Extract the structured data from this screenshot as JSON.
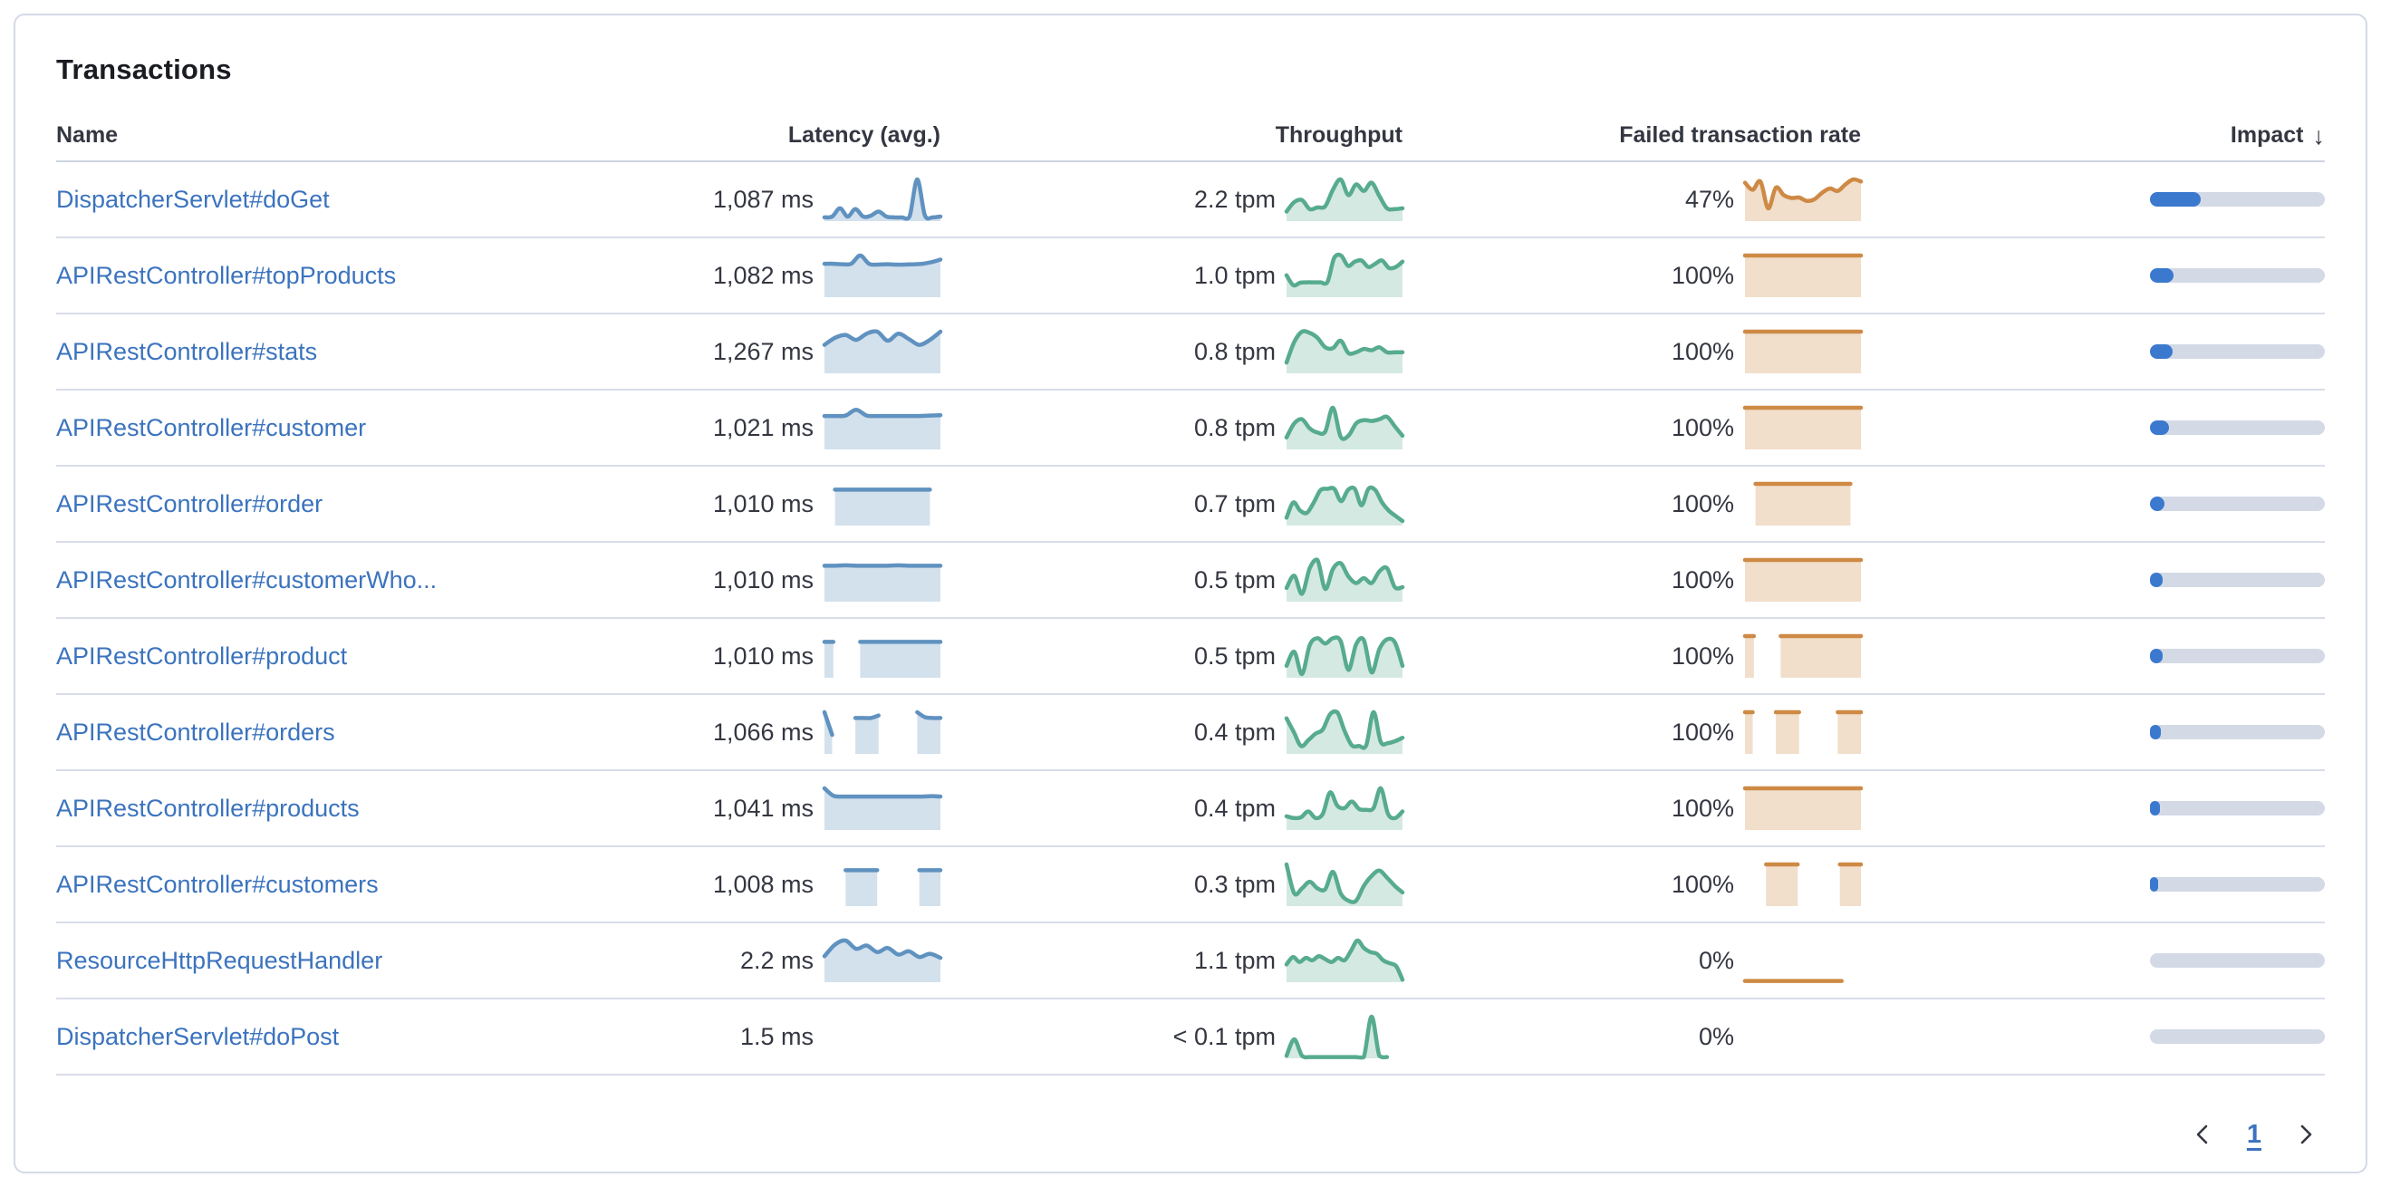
{
  "panel": {
    "title": "Transactions"
  },
  "table": {
    "columns": [
      {
        "label": "Name"
      },
      {
        "label": "Latency (avg.)"
      },
      {
        "label": "Throughput"
      },
      {
        "label": "Failed transaction rate"
      },
      {
        "label": "Impact",
        "sort": "desc"
      }
    ],
    "sort_icon": "↓",
    "rows": [
      {
        "name": "DispatcherServlet#doGet",
        "latency": "1,087 ms",
        "throughput": "2.2 tpm",
        "failed_rate": "47%",
        "impact_pct": 29,
        "latency_spark": [
          0.08,
          0.1,
          0.3,
          0.1,
          0.28,
          0.1,
          0.12,
          0.22,
          0.1,
          0.08,
          0.08,
          0.1,
          1.0,
          0.12,
          0.08,
          0.1
        ],
        "throughput_spark": [
          0.22,
          0.45,
          0.5,
          0.28,
          0.32,
          0.35,
          0.75,
          1.0,
          0.62,
          0.88,
          0.72,
          0.92,
          0.6,
          0.3,
          0.28,
          0.3
        ],
        "failed_spark": [
          0.92,
          0.75,
          0.95,
          0.3,
          0.8,
          0.62,
          0.55,
          0.56,
          0.48,
          0.52,
          0.68,
          0.78,
          0.72,
          0.88,
          1.0,
          0.95
        ]
      },
      {
        "name": "APIRestController#topProducts",
        "latency": "1,082 ms",
        "throughput": "1.0 tpm",
        "failed_rate": "100%",
        "impact_pct": 13.5,
        "latency_spark": [
          0.8,
          0.8,
          0.79,
          0.8,
          1.0,
          0.8,
          0.78,
          0.79,
          0.78,
          0.78,
          0.79,
          0.8,
          0.84,
          0.9
        ],
        "throughput_spark": [
          0.52,
          0.28,
          0.34,
          0.35,
          0.35,
          0.35,
          0.36,
          0.95,
          1.0,
          0.75,
          0.85,
          0.88,
          0.72,
          0.8,
          0.88,
          0.7,
          0.72,
          0.85
        ],
        "failed_spark": [
          1,
          1,
          1,
          1,
          1,
          1,
          1,
          1,
          1,
          1,
          1,
          1
        ]
      },
      {
        "name": "APIRestController#stats",
        "latency": "1,267 ms",
        "throughput": "0.8 tpm",
        "failed_rate": "100%",
        "impact_pct": 13,
        "latency_spark": [
          0.68,
          0.85,
          0.92,
          0.8,
          0.95,
          1.0,
          0.78,
          0.95,
          0.82,
          0.68,
          0.8,
          1.0
        ],
        "throughput_spark": [
          0.25,
          0.75,
          1.0,
          0.97,
          0.85,
          0.62,
          0.6,
          0.78,
          0.48,
          0.5,
          0.58,
          0.55,
          0.62,
          0.5,
          0.5,
          0.5
        ],
        "failed_spark": [
          1,
          1,
          1,
          1,
          1,
          1,
          1,
          1,
          1,
          1,
          1,
          1
        ]
      },
      {
        "name": "APIRestController#customer",
        "latency": "1,021 ms",
        "throughput": "0.8 tpm",
        "failed_rate": "100%",
        "impact_pct": 11,
        "latency_spark": [
          0.8,
          0.8,
          0.81,
          0.95,
          0.81,
          0.8,
          0.8,
          0.8,
          0.8,
          0.8,
          0.81,
          0.82
        ],
        "throughput_spark": [
          0.28,
          0.62,
          0.72,
          0.5,
          0.4,
          0.42,
          1.0,
          0.3,
          0.32,
          0.62,
          0.7,
          0.68,
          0.72,
          0.78,
          0.55,
          0.32
        ],
        "failed_spark": [
          1,
          1,
          1,
          1,
          1,
          1,
          1,
          1,
          1,
          1,
          1,
          1
        ]
      },
      {
        "name": "APIRestController#order",
        "latency": "1,010 ms",
        "throughput": "0.7 tpm",
        "failed_rate": "100%",
        "impact_pct": 8.5,
        "latency_spark": [
          null,
          0.86,
          0.86,
          0.86,
          0.86,
          0.86,
          0.86,
          0.86,
          0.86,
          0.86,
          0.86,
          null
        ],
        "throughput_spark": [
          0.18,
          0.55,
          0.35,
          0.3,
          0.55,
          0.85,
          0.88,
          0.88,
          0.58,
          0.85,
          0.88,
          0.48,
          0.88,
          0.85,
          0.55,
          0.35,
          0.22,
          0.1
        ],
        "failed_spark": [
          null,
          1,
          1,
          1,
          1,
          1,
          1,
          1,
          1,
          1,
          1,
          null
        ]
      },
      {
        "name": "APIRestController#customerWho...",
        "latency": "1,010 ms",
        "throughput": "0.5 tpm",
        "failed_rate": "100%",
        "impact_pct": 7.5,
        "latency_spark": [
          0.86,
          0.86,
          0.87,
          0.86,
          0.86,
          0.86,
          0.86,
          0.87,
          0.86,
          0.86,
          0.86,
          0.86
        ],
        "throughput_spark": [
          0.32,
          0.62,
          0.18,
          0.8,
          1.0,
          0.3,
          0.78,
          0.92,
          0.6,
          0.44,
          0.56,
          0.44,
          0.72,
          0.8,
          0.34,
          0.34
        ],
        "failed_spark": [
          1,
          1,
          1,
          1,
          1,
          1,
          1,
          1,
          1,
          1,
          1,
          1
        ]
      },
      {
        "name": "APIRestController#product",
        "latency": "1,010 ms",
        "throughput": "0.5 tpm",
        "failed_rate": "100%",
        "impact_pct": 7,
        "latency_spark": [
          0.86,
          0.86,
          null,
          null,
          0.86,
          0.86,
          0.86,
          0.86,
          0.86,
          0.86,
          0.86,
          0.86,
          0.86,
          0.86
        ],
        "throughput_spark": [
          0.28,
          0.62,
          0.08,
          0.78,
          0.95,
          0.82,
          0.95,
          0.88,
          0.18,
          0.8,
          0.9,
          0.12,
          0.68,
          0.92,
          0.85,
          0.28
        ],
        "failed_spark": [
          1,
          1,
          null,
          null,
          1,
          1,
          1,
          1,
          1,
          1,
          1,
          1,
          1,
          1
        ]
      },
      {
        "name": "APIRestController#orders",
        "latency": "1,066 ms",
        "throughput": "0.4 tpm",
        "failed_rate": "100%",
        "impact_pct": 6,
        "latency_spark": [
          1.0,
          0.45,
          null,
          null,
          0.86,
          0.86,
          0.86,
          0.92,
          null,
          null,
          null,
          null,
          1.0,
          0.88,
          0.86,
          0.86
        ],
        "throughput_spark": [
          0.85,
          0.52,
          0.18,
          0.32,
          0.48,
          0.58,
          0.95,
          1.0,
          0.55,
          0.2,
          0.18,
          0.2,
          1.0,
          0.28,
          0.25,
          0.3,
          0.38
        ],
        "failed_spark": [
          1,
          1,
          null,
          null,
          1,
          1,
          1,
          1,
          null,
          null,
          null,
          null,
          1,
          1,
          1,
          1
        ]
      },
      {
        "name": "APIRestController#products",
        "latency": "1,041 ms",
        "throughput": "0.4 tpm",
        "failed_rate": "100%",
        "impact_pct": 5.5,
        "latency_spark": [
          1.0,
          0.82,
          0.8,
          0.8,
          0.8,
          0.8,
          0.8,
          0.8,
          0.8,
          0.8,
          0.8,
          0.8,
          0.81,
          0.8
        ],
        "throughput_spark": [
          0.32,
          0.28,
          0.3,
          0.44,
          0.28,
          0.38,
          0.9,
          0.58,
          0.52,
          0.68,
          0.5,
          0.48,
          0.52,
          1.0,
          0.38,
          0.28,
          0.44
        ],
        "failed_spark": [
          1,
          1,
          1,
          1,
          1,
          1,
          1,
          1,
          1,
          1,
          1,
          1
        ]
      },
      {
        "name": "APIRestController#customers",
        "latency": "1,008 ms",
        "throughput": "0.3 tpm",
        "failed_rate": "100%",
        "impact_pct": 4.5,
        "latency_spark": [
          null,
          null,
          0.86,
          0.86,
          0.86,
          0.86,
          null,
          null,
          null,
          0.86,
          0.86,
          0.86
        ],
        "throughput_spark": [
          1.0,
          0.3,
          0.42,
          0.58,
          0.42,
          0.4,
          0.82,
          0.3,
          0.12,
          0.12,
          0.48,
          0.72,
          0.85,
          0.68,
          0.48,
          0.32
        ],
        "failed_spark": [
          null,
          null,
          1,
          1,
          1,
          1,
          null,
          null,
          null,
          1,
          1,
          1
        ]
      },
      {
        "name": "ResourceHttpRequestHandler",
        "latency": "2.2 ms",
        "throughput": "1.1 tpm",
        "failed_rate": "0%",
        "impact_pct": 0,
        "latency_spark": [
          0.62,
          0.9,
          1.0,
          0.8,
          0.88,
          0.72,
          0.82,
          0.66,
          0.74,
          0.6,
          0.68,
          0.58
        ],
        "throughput_spark": [
          0.42,
          0.6,
          0.48,
          0.58,
          0.52,
          0.62,
          0.55,
          0.48,
          0.58,
          0.52,
          0.75,
          1.0,
          0.82,
          0.72,
          0.68,
          0.52,
          0.45,
          0.38,
          0.05
        ],
        "failed_spark": [
          0.02,
          0.02,
          0.02,
          0.02,
          0.02,
          0.02,
          0.02,
          0.02,
          0.02,
          0.02,
          0.02,
          null,
          null
        ]
      },
      {
        "name": "DispatcherServlet#doPost",
        "latency": "1.5 ms",
        "throughput": "< 0.1 tpm",
        "failed_rate": "0%",
        "impact_pct": 0,
        "latency_spark": null,
        "throughput_spark": [
          0.05,
          0.45,
          0.05,
          0.02,
          0.02,
          0.02,
          0.02,
          0.02,
          0.02,
          0.02,
          0.02,
          1.0,
          0.05,
          0.02,
          null,
          null
        ],
        "failed_spark": null
      }
    ]
  },
  "pagination": {
    "page": "1",
    "prev_icon": "chevron-left",
    "next_icon": "chevron-right"
  },
  "colors": {
    "link": "#3B73BE",
    "text": "#343741",
    "title": "#1A1C21",
    "panel_border": "#D3DAE6",
    "row_border": "#D8DDE8",
    "latency_line": "#6092C0",
    "latency_fill": "rgba(96,146,192,0.28)",
    "throughput_line": "#57AB8E",
    "throughput_fill": "rgba(87,171,142,0.26)",
    "failed_line": "#CE8A45",
    "failed_fill": "rgba(206,138,69,0.28)",
    "impact_fill": "#3B79CE",
    "impact_track": "#D3DAE6"
  }
}
